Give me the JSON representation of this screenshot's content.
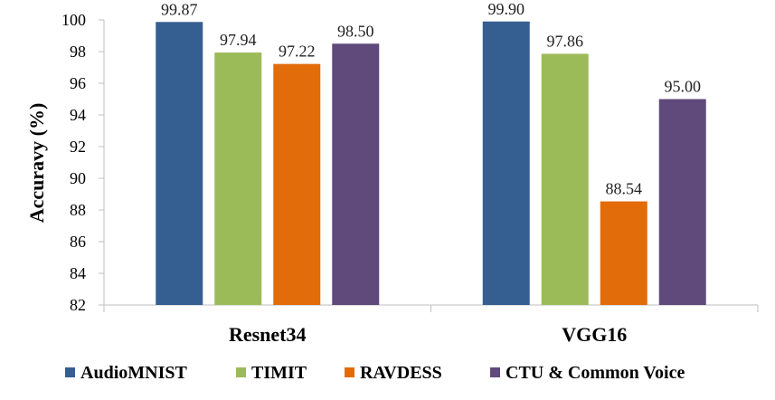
{
  "chart_data": {
    "type": "bar",
    "categories": [
      "Resnet34",
      "VGG16"
    ],
    "series": [
      {
        "name": "AudioMNIST",
        "values": [
          99.87,
          99.9
        ],
        "color": "#365F91"
      },
      {
        "name": "TIMIT",
        "values": [
          97.94,
          97.86
        ],
        "color": "#9BBB59"
      },
      {
        "name": "RAVDESS",
        "values": [
          97.22,
          88.54
        ],
        "color": "#E36C0A"
      },
      {
        "name": "CTU & Common Voice",
        "values": [
          98.5,
          95.0
        ],
        "color": "#604A7B"
      }
    ],
    "data_labels": [
      [
        "99.87",
        "99.90"
      ],
      [
        "97.94",
        "97.86"
      ],
      [
        "97.22",
        "88.54"
      ],
      [
        "98.50",
        "95.00"
      ]
    ],
    "ylabel": "Accuravy (%)",
    "ylim": [
      82,
      100
    ],
    "yticks": [
      "82",
      "84",
      "86",
      "88",
      "90",
      "92",
      "94",
      "96",
      "98",
      "100"
    ],
    "grid": false,
    "legend_position": "bottom"
  }
}
